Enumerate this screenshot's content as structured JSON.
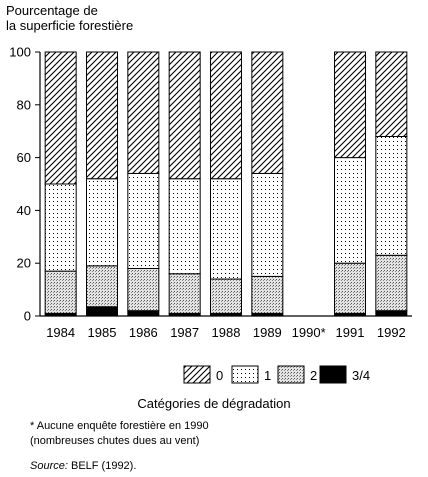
{
  "chart_data": {
    "type": "bar",
    "stacked": true,
    "ylabel_line1": "Pourcentage de",
    "ylabel_line2": "la superficie forestière",
    "ylim": [
      0,
      100
    ],
    "yticks": [
      0,
      20,
      40,
      60,
      80,
      100
    ],
    "categories": [
      "1984",
      "1985",
      "1986",
      "1987",
      "1988",
      "1989",
      "1990",
      "1991",
      "1992"
    ],
    "category_markers": [
      "",
      "",
      "",
      "",
      "",
      "",
      "*",
      "",
      ""
    ],
    "series": [
      {
        "name": "3/4",
        "values": [
          1,
          3.5,
          2,
          1,
          1,
          1,
          null,
          1,
          2
        ]
      },
      {
        "name": "2",
        "values": [
          16,
          15.5,
          16,
          15,
          13,
          14,
          null,
          19,
          21
        ]
      },
      {
        "name": "1",
        "values": [
          33,
          33,
          36,
          36,
          38,
          39,
          null,
          40,
          45
        ]
      },
      {
        "name": "0",
        "values": [
          50,
          48,
          46,
          48,
          48,
          46,
          null,
          40,
          32
        ]
      }
    ],
    "legend_order": [
      "0",
      "1",
      "2",
      "3/4"
    ],
    "legend_title": "Catégories de dégradation",
    "legend_position": "bottom",
    "grid": false
  },
  "notes": {
    "line1": "* Aucune enquête forestière en 1990",
    "line2": "(nombreuses chutes dues au vent)",
    "source_prefix": "Source:",
    "source_text": " BELF (1992)."
  }
}
